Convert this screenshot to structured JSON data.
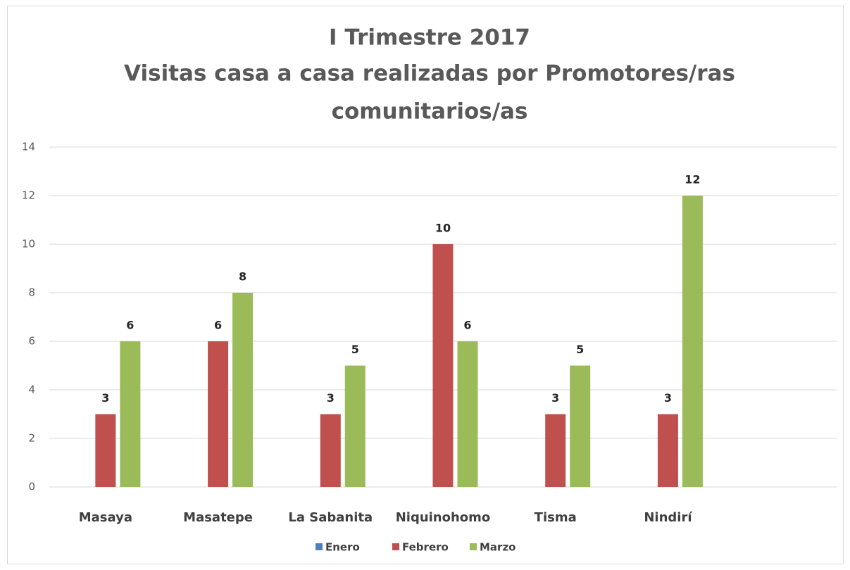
{
  "chart_data": {
    "type": "bar",
    "title": [
      "I Trimestre 2017",
      "Visitas casa a casa realizadas por Promotores/ras",
      "comunitarios/as"
    ],
    "categories": [
      "Masaya",
      "Masatepe",
      "La Sabanita",
      "Niquinohomo",
      "Tisma",
      "Nindirí",
      null
    ],
    "series": [
      {
        "name": "Enero",
        "color": "#4f81bd",
        "values": [
          null,
          null,
          null,
          null,
          null,
          null,
          null
        ]
      },
      {
        "name": "Febrero",
        "color": "#c0504d",
        "values": [
          3,
          6,
          3,
          10,
          3,
          3,
          null
        ]
      },
      {
        "name": "Marzo",
        "color": "#9bbb59",
        "values": [
          6,
          8,
          5,
          6,
          5,
          12,
          null
        ]
      }
    ],
    "ylim": [
      0,
      14
    ],
    "yticks": [
      0,
      2,
      4,
      6,
      8,
      10,
      12,
      14
    ],
    "grid": true,
    "legend": "bottom"
  }
}
